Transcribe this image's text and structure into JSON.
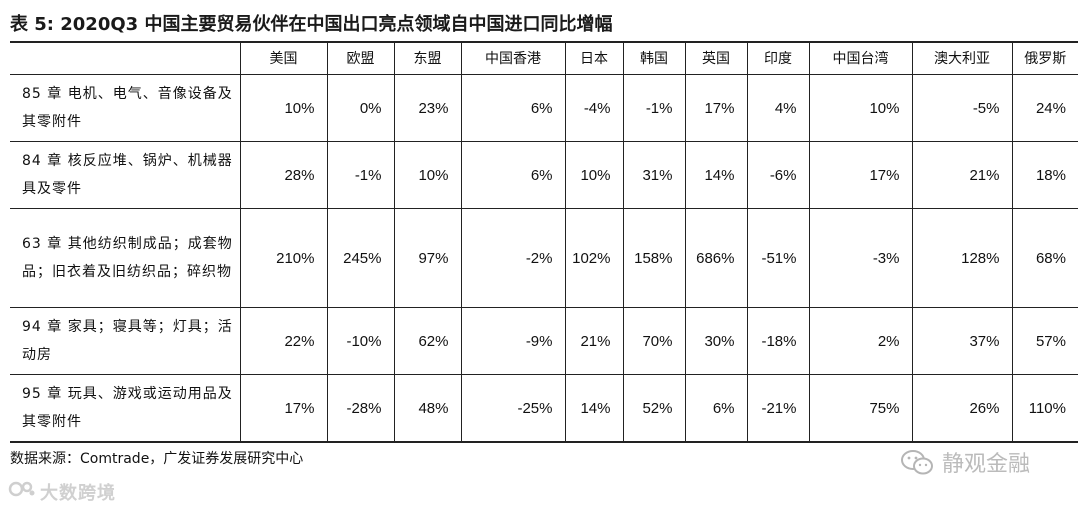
{
  "title": "表 5:  2020Q3 中国主要贸易伙伴在中国出口亮点领域自中国进口同比增幅",
  "columns": [
    "美国",
    "欧盟",
    "东盟",
    "中国香港",
    "日本",
    "韩国",
    "英国",
    "印度",
    "中国台湾",
    "澳大利亚",
    "俄罗斯"
  ],
  "rows": [
    {
      "label": "85 章 电机、电气、音像设备及其零附件",
      "values": [
        "10%",
        "0%",
        "23%",
        "6%",
        "-4%",
        "-1%",
        "17%",
        "4%",
        "10%",
        "-5%",
        "24%"
      ]
    },
    {
      "label": "84 章 核反应堆、锅炉、机械器具及零件",
      "values": [
        "28%",
        "-1%",
        "10%",
        "6%",
        "10%",
        "31%",
        "14%",
        "-6%",
        "17%",
        "21%",
        "18%"
      ]
    },
    {
      "label": "63 章 其他纺织制成品；成套物品；旧衣着及旧纺织品；碎织物",
      "values": [
        "210%",
        "245%",
        "97%",
        "-2%",
        "102%",
        "158%",
        "686%",
        "-51%",
        "-3%",
        "128%",
        "68%"
      ]
    },
    {
      "label": "94 章 家具；寝具等；灯具；活动房",
      "values": [
        "22%",
        "-10%",
        "62%",
        "-9%",
        "21%",
        "70%",
        "30%",
        "-18%",
        "2%",
        "37%",
        "57%"
      ]
    },
    {
      "label": "95 章 玩具、游戏或运动用品及其零附件",
      "values": [
        "17%",
        "-28%",
        "48%",
        "-25%",
        "14%",
        "52%",
        "6%",
        "-21%",
        "75%",
        "26%",
        "110%"
      ]
    }
  ],
  "source": "数据来源：Comtrade，广发证券发展研究中心",
  "watermark_left": "大数跨境",
  "watermark_right": "静观金融",
  "icons": {
    "left_logo": "brand-logo-icon",
    "right_logo": "wechat-icon"
  }
}
